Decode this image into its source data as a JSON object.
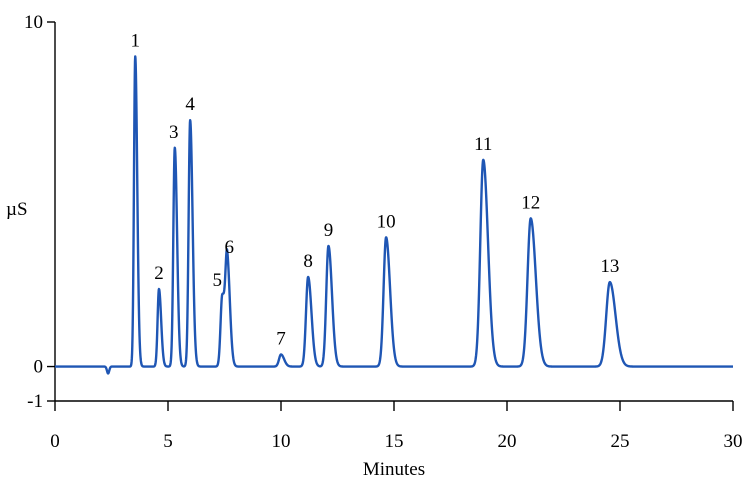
{
  "chart_data": {
    "type": "line",
    "xlabel": "Minutes",
    "ylabel": "µS",
    "xlim": [
      0,
      30
    ],
    "ylim": [
      -1,
      10
    ],
    "x_ticks": [
      0,
      5,
      10,
      15,
      20,
      25,
      30
    ],
    "y_ticks": [
      -1,
      0,
      10
    ],
    "grid": false,
    "series_color": "#1f56b4",
    "baseline": 0,
    "dip": {
      "x": 2.35,
      "y": -0.2
    },
    "peaks": [
      {
        "label": "1",
        "x": 3.55,
        "y": 9.0
      },
      {
        "label": "2",
        "x": 4.6,
        "y": 2.25
      },
      {
        "label": "3",
        "x": 5.3,
        "y": 6.35
      },
      {
        "label": "4",
        "x": 5.98,
        "y": 7.15
      },
      {
        "label": "5",
        "x": 7.4,
        "y": 2.05
      },
      {
        "label": "6",
        "x": 7.62,
        "y": 3.0
      },
      {
        "label": "7",
        "x": 10.0,
        "y": 0.35
      },
      {
        "label": "8",
        "x": 11.2,
        "y": 2.6
      },
      {
        "label": "9",
        "x": 12.1,
        "y": 3.5
      },
      {
        "label": "10",
        "x": 14.65,
        "y": 3.75
      },
      {
        "label": "11",
        "x": 18.95,
        "y": 6.0
      },
      {
        "label": "12",
        "x": 21.05,
        "y": 4.3
      },
      {
        "label": "13",
        "x": 24.55,
        "y": 2.45
      }
    ]
  }
}
